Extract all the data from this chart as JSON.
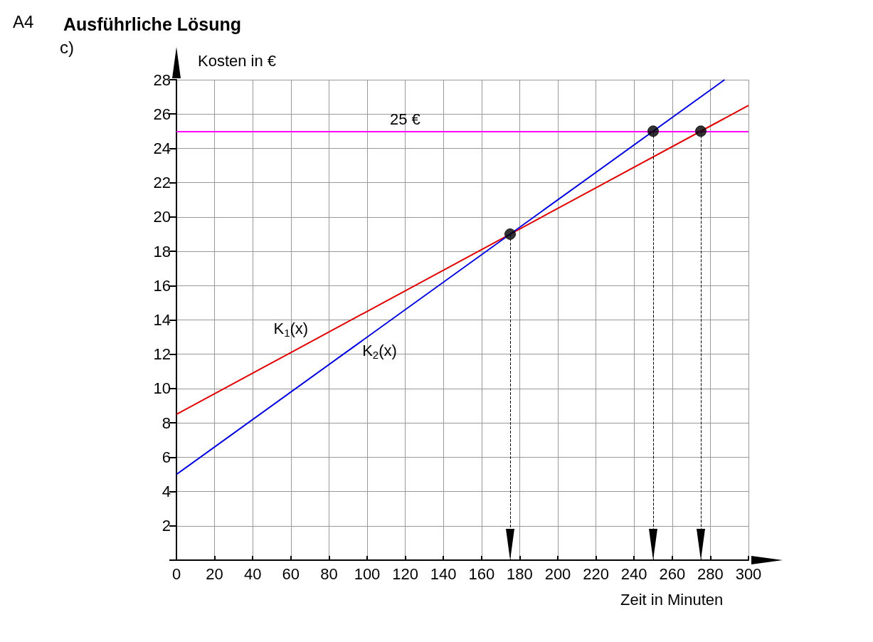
{
  "chart_data": {
    "type": "line",
    "title": "Ausführliche Lösung",
    "annotations": [
      "A4",
      "c)"
    ],
    "xlabel": "Zeit in Minuten",
    "ylabel": "Kosten in €",
    "xlim": [
      0,
      300
    ],
    "xticks": [
      0,
      20,
      40,
      60,
      80,
      100,
      120,
      140,
      160,
      180,
      200,
      220,
      240,
      260,
      280,
      300
    ],
    "ylim": [
      0,
      28
    ],
    "yticks": [
      {
        "value": 0,
        "label": null
      },
      2,
      4,
      6,
      8,
      10,
      12,
      14,
      16,
      18,
      20,
      22,
      24,
      26,
      28
    ],
    "grid": true,
    "legend": false,
    "marker": "none",
    "line_style": "solid",
    "series": [
      {
        "name": "K$_{1}$(x)",
        "color": "#e00000",
        "x": [
          0,
          60,
          300
        ],
        "values": [
          8.5,
          12.1,
          26.5
        ]
      },
      {
        "name": "K$_{2}$(x)",
        "color": "#0000e0",
        "x": [
          0,
          90,
          287.5
        ],
        "values": [
          5,
          12.2,
          28
        ]
      },
      {
        "type": "scatter",
        "color": "#000000",
        "marker": "circle",
        "x": [
          175,
          250,
          275
        ],
        "values": [
          19,
          25,
          25
        ]
      }
    ],
    "ref_lines": [
      {
        "axis": "y",
        "value": 25,
        "label": "25 €",
        "color": "#ff00ff"
      },
      {
        "axis": "x",
        "value": 175,
        "color": "#000000",
        "line_style": "dashed"
      },
      {
        "axis": "x",
        "value": 250,
        "color": "#000000",
        "line_style": "dashed"
      },
      {
        "axis": "x",
        "value": 275,
        "color": "#000000",
        "line_style": "dashed"
      }
    ]
  }
}
